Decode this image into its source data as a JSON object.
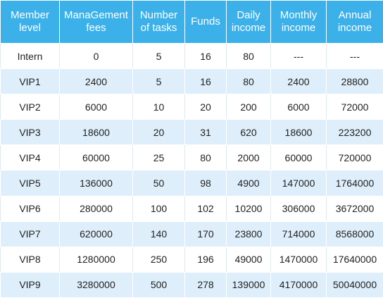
{
  "table": {
    "headers": [
      [
        "Member",
        "level"
      ],
      [
        "ManaGement",
        "fees"
      ],
      [
        "Number",
        "of tasks"
      ],
      [
        "Funds"
      ],
      [
        "Daily",
        "income"
      ],
      [
        "Monthly",
        "income"
      ],
      [
        "Annual",
        "income"
      ]
    ],
    "rows": [
      [
        "Intern",
        "0",
        "5",
        "16",
        "80",
        "---",
        "---"
      ],
      [
        "VIP1",
        "2400",
        "5",
        "16",
        "80",
        "2400",
        "28800"
      ],
      [
        "VIP2",
        "6000",
        "10",
        "20",
        "200",
        "6000",
        "72000"
      ],
      [
        "VIP3",
        "18600",
        "20",
        "31",
        "620",
        "18600",
        "223200"
      ],
      [
        "VIP4",
        "60000",
        "25",
        "80",
        "2000",
        "60000",
        "720000"
      ],
      [
        "VIP5",
        "136000",
        "50",
        "98",
        "4900",
        "147000",
        "1764000"
      ],
      [
        "VIP6",
        "280000",
        "100",
        "102",
        "10200",
        "306000",
        "3672000"
      ],
      [
        "VIP7",
        "620000",
        "140",
        "170",
        "23800",
        "714000",
        "8568000"
      ],
      [
        "VIP8",
        "1280000",
        "250",
        "196",
        "49000",
        "1470000",
        "17640000"
      ],
      [
        "VIP9",
        "3280000",
        "500",
        "278",
        "139000",
        "4170000",
        "50040000"
      ]
    ]
  },
  "colors": {
    "header_bg": "#3cb1e9",
    "header_text": "#ffffff",
    "stripe_bg": "#deeffb",
    "row_bg": "#ffffff",
    "cell_text": "#222222"
  }
}
